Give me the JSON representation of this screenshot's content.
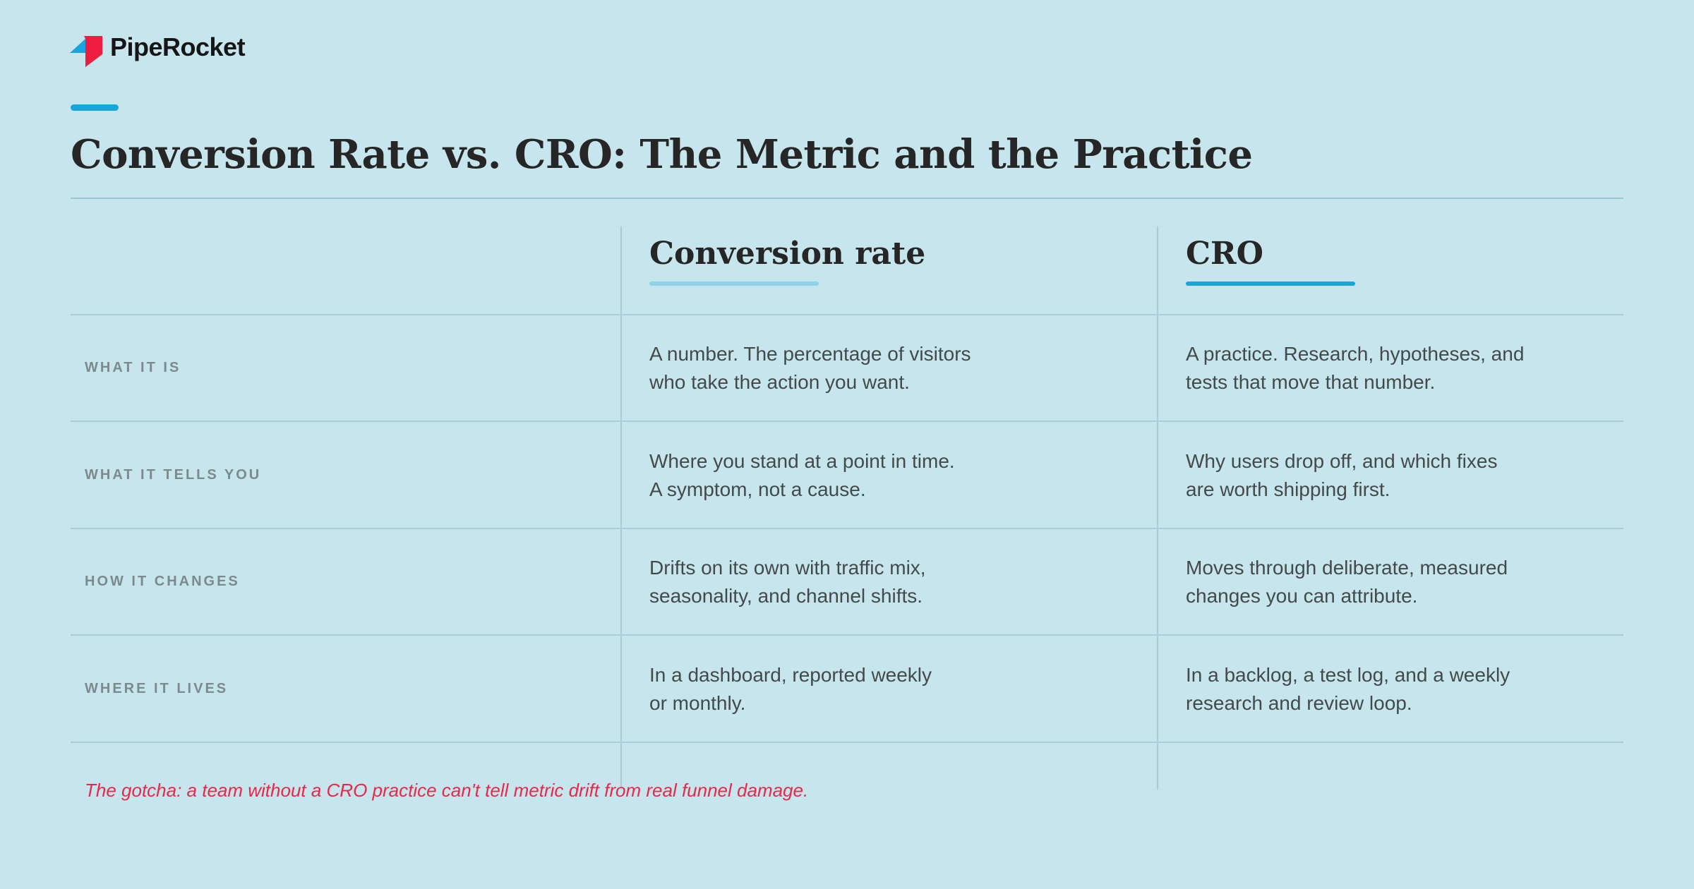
{
  "header": {
    "brand": "PipeRocket"
  },
  "title": "Conversion Rate vs. CRO: The Metric and the Practice",
  "table": {
    "columns": [
      "Conversion rate",
      "CRO"
    ],
    "rows": [
      {
        "label": "WHAT IT IS",
        "cells": [
          [
            "A number. The percentage of visitors",
            "who take the action you want."
          ],
          [
            "A practice. Research, hypotheses, and",
            "tests that move that number."
          ]
        ]
      },
      {
        "label": "WHAT IT TELLS YOU",
        "cells": [
          [
            "Where you stand at a point in time.",
            "A symptom, not a cause."
          ],
          [
            "Why users drop off, and which fixes",
            "are worth shipping first."
          ]
        ]
      },
      {
        "label": "HOW IT CHANGES",
        "cells": [
          [
            "Drifts on its own with traffic mix,",
            "seasonality, and channel shifts."
          ],
          [
            "Moves through deliberate, measured",
            "changes you can attribute."
          ]
        ]
      },
      {
        "label": "WHERE IT LIVES",
        "cells": [
          [
            "In a dashboard, reported weekly",
            "or monthly."
          ],
          [
            "In a backlog, a test log, and a weekly",
            "research and review loop."
          ]
        ]
      }
    ]
  },
  "footnote": "The gotcha: a team without a CRO practice can't tell metric drift from real funnel damage."
}
